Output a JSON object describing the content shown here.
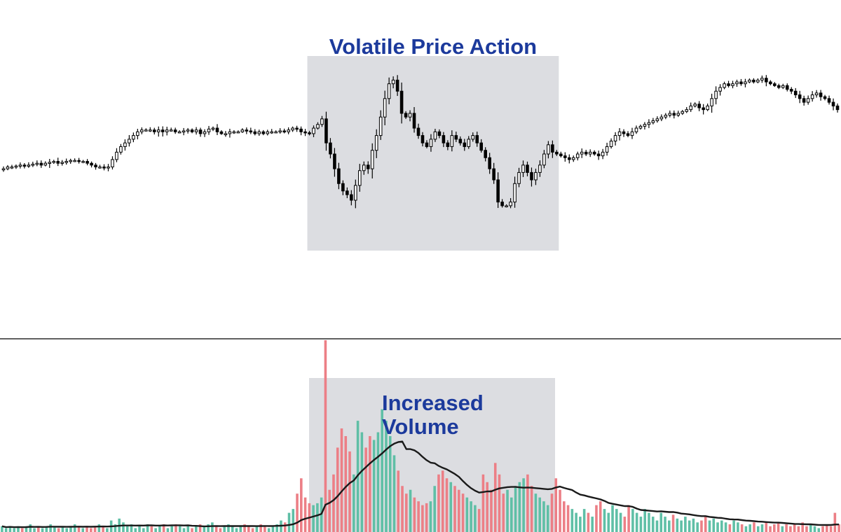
{
  "colors": {
    "candle": "#000000",
    "highlight": "#dcdde1",
    "annotation_text": "#1c3a9c",
    "volume_up": "#5fbfa6",
    "volume_down": "#ec7f86",
    "volume_ma": "#1a1a1a",
    "divider": "#000000"
  },
  "chart_data": [
    {
      "type": "candlestick",
      "title": "",
      "xlabel": "",
      "ylabel": "",
      "ylim": [
        0,
        100
      ],
      "grid": false,
      "annotations": [
        {
          "text": "Volatile Price Action",
          "x_range": [
            73,
            133
          ]
        }
      ],
      "close": [
        42,
        43,
        43,
        43.5,
        44,
        43.5,
        44,
        44.5,
        45,
        44,
        45,
        45.5,
        46,
        45,
        45.5,
        46,
        46.5,
        46.5,
        46,
        46,
        45,
        44,
        43,
        43,
        42.5,
        43,
        47,
        51,
        54,
        56,
        58,
        60,
        62,
        63,
        63,
        63,
        62,
        63,
        62,
        63,
        63,
        62,
        62,
        62.5,
        63,
        62,
        63,
        61,
        62,
        63.5,
        64,
        62,
        61,
        61,
        62,
        62,
        62,
        63,
        62.5,
        62,
        61,
        62,
        61,
        62,
        62,
        62,
        62.5,
        62,
        63,
        64,
        63.5,
        62,
        61.5,
        61,
        64,
        66,
        69,
        56,
        50,
        42,
        34,
        30,
        28,
        25,
        33,
        41,
        44,
        42,
        52,
        60,
        70,
        80,
        88,
        90,
        84,
        72,
        70,
        72,
        64,
        60,
        56,
        54,
        58,
        62,
        60,
        56,
        54,
        60,
        58,
        56,
        54,
        58,
        60,
        56,
        52,
        48,
        42,
        36,
        24,
        22,
        22,
        24,
        34,
        40,
        44,
        40,
        36,
        40,
        44,
        50,
        55,
        51,
        50,
        49,
        48,
        47,
        48,
        50,
        51,
        50,
        51,
        50,
        49,
        51,
        54,
        57,
        60,
        62,
        61,
        60,
        62,
        64,
        65,
        66,
        67,
        68,
        69,
        70,
        71,
        72,
        71,
        72,
        73,
        74,
        76,
        77,
        75,
        74,
        76,
        80,
        84,
        86,
        88,
        87,
        88,
        89,
        88,
        89,
        90,
        89,
        90,
        91,
        89,
        88,
        87,
        86,
        87,
        85,
        84,
        82,
        80,
        78,
        80,
        82,
        83,
        81,
        80,
        78,
        76,
        74
      ]
    },
    {
      "type": "bar",
      "title": "",
      "xlabel": "",
      "ylabel": "",
      "ylim": [
        0,
        100
      ],
      "grid": false,
      "annotations": [
        {
          "text": "Increased",
          "line": 1
        },
        {
          "text": "Volume",
          "line": 2
        }
      ],
      "legend": "none",
      "moving_average": true,
      "values": [
        3,
        2,
        3,
        2,
        3,
        2,
        3,
        4,
        2,
        3,
        2,
        3,
        4,
        3,
        2,
        3,
        2,
        3,
        4,
        3,
        2,
        3,
        2,
        3,
        4,
        3,
        2,
        6,
        4,
        7,
        5,
        3,
        4,
        2,
        3,
        2,
        4,
        3,
        2,
        3,
        4,
        2,
        3,
        4,
        3,
        2,
        3,
        2,
        3,
        4,
        3,
        4,
        5,
        3,
        2,
        3,
        4,
        3,
        2,
        3,
        4,
        3,
        2,
        3,
        4,
        3,
        2,
        3,
        4,
        6,
        5,
        10,
        12,
        20,
        28,
        18,
        15,
        14,
        15,
        18,
        100,
        22,
        30,
        44,
        54,
        50,
        42,
        30,
        58,
        52,
        44,
        50,
        48,
        52,
        64,
        58,
        50,
        40,
        32,
        24,
        20,
        22,
        18,
        16,
        14,
        15,
        16,
        24,
        30,
        32,
        28,
        26,
        24,
        22,
        20,
        18,
        16,
        14,
        12,
        30,
        26,
        22,
        36,
        30,
        20,
        22,
        18,
        24,
        26,
        28,
        30,
        24,
        20,
        18,
        16,
        14,
        20,
        28,
        22,
        16,
        14,
        12,
        10,
        8,
        12,
        10,
        8,
        14,
        16,
        12,
        10,
        14,
        12,
        10,
        8,
        14,
        12,
        10,
        8,
        12,
        10,
        8,
        6,
        10,
        8,
        6,
        9,
        7,
        6,
        8,
        6,
        7,
        5,
        6,
        8,
        6,
        7,
        5,
        6,
        5,
        4,
        6,
        5,
        4,
        3,
        4,
        5,
        3,
        4,
        5,
        3,
        4,
        5,
        3,
        4,
        3,
        4,
        3,
        5,
        3,
        4,
        3,
        2,
        3,
        4,
        3,
        10,
        4
      ]
    }
  ]
}
